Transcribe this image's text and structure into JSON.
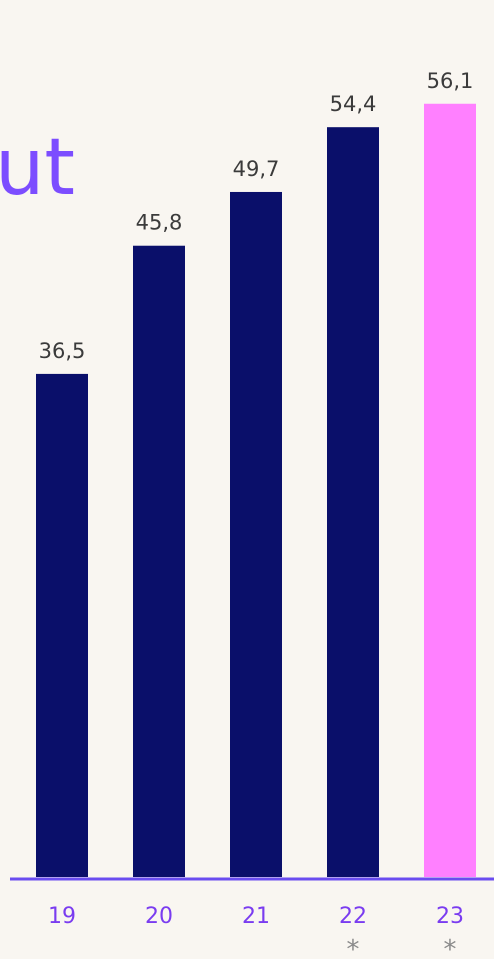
{
  "title_fragment": "ut",
  "colors": {
    "background": "#f9f6f1",
    "bar_default": "#0a0f6a",
    "bar_highlight": "#ff80ff",
    "axis": "#6a4cf0",
    "tick_text": "#7a3cf0",
    "value_text": "#3b3b3b",
    "star_text": "#8a8a8a",
    "title_text": "#7c4dff"
  },
  "chart_data": {
    "type": "bar",
    "categories": [
      "19",
      "20",
      "21",
      "22",
      "23"
    ],
    "values": [
      36.5,
      45.8,
      49.7,
      54.4,
      56.1
    ],
    "value_labels": [
      "36,5",
      "45,8",
      "49,7",
      "54,4",
      "56,1"
    ],
    "markers": [
      "",
      "",
      "",
      "*",
      "*"
    ],
    "highlight_index": 4,
    "title": "",
    "xlabel": "",
    "ylabel": "",
    "ylim": [
      0,
      60
    ],
    "grid": false,
    "legend": "none"
  }
}
